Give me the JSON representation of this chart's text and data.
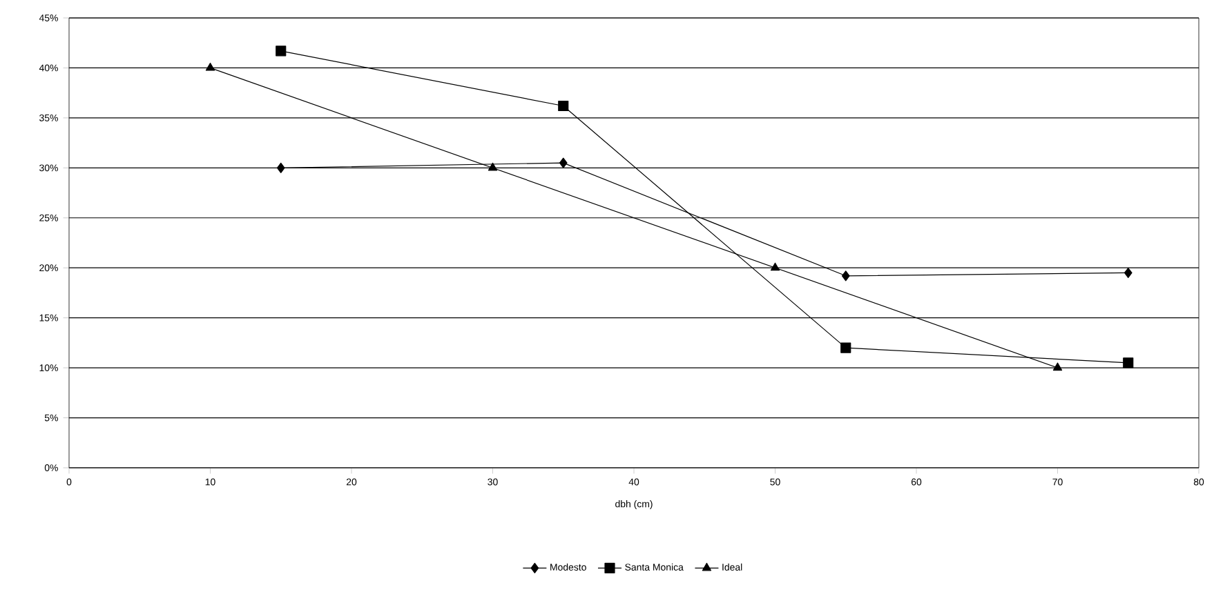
{
  "chart_data": {
    "type": "line",
    "xlabel": "dbh (cm)",
    "series": [
      {
        "name": "Modesto",
        "color": "#000000",
        "marker": "diamond",
        "x": [
          15,
          35,
          55,
          75
        ],
        "values": [
          30,
          30.5,
          19.2,
          19.5
        ]
      },
      {
        "name": "Santa Monica",
        "color": "#000000",
        "marker": "square",
        "x": [
          15,
          35,
          55,
          75
        ],
        "values": [
          41.7,
          36.2,
          12,
          10.5
        ]
      },
      {
        "name": "Ideal",
        "color": "#000000",
        "marker": "triangle",
        "x": [
          10,
          30,
          50,
          70
        ],
        "values": [
          40,
          30,
          20,
          10
        ]
      }
    ],
    "xlim": [
      0,
      80
    ],
    "xticks": [
      0,
      10,
      20,
      30,
      40,
      50,
      60,
      70,
      80
    ],
    "ylim": [
      0,
      45
    ],
    "yticks": [
      {
        "value": 0,
        "label": "0%"
      },
      {
        "value": 5,
        "label": "5%"
      },
      {
        "value": 10,
        "label": "10%"
      },
      {
        "value": 15,
        "label": "15%"
      },
      {
        "value": 20,
        "label": "20%"
      },
      {
        "value": 25,
        "label": "25%"
      },
      {
        "value": 30,
        "label": "30%"
      },
      {
        "value": 35,
        "label": "35%"
      },
      {
        "value": 40,
        "label": "40%"
      },
      {
        "value": 45,
        "label": "45%"
      }
    ],
    "grid": "y",
    "legend": "bottom",
    "line_style": "solid"
  }
}
